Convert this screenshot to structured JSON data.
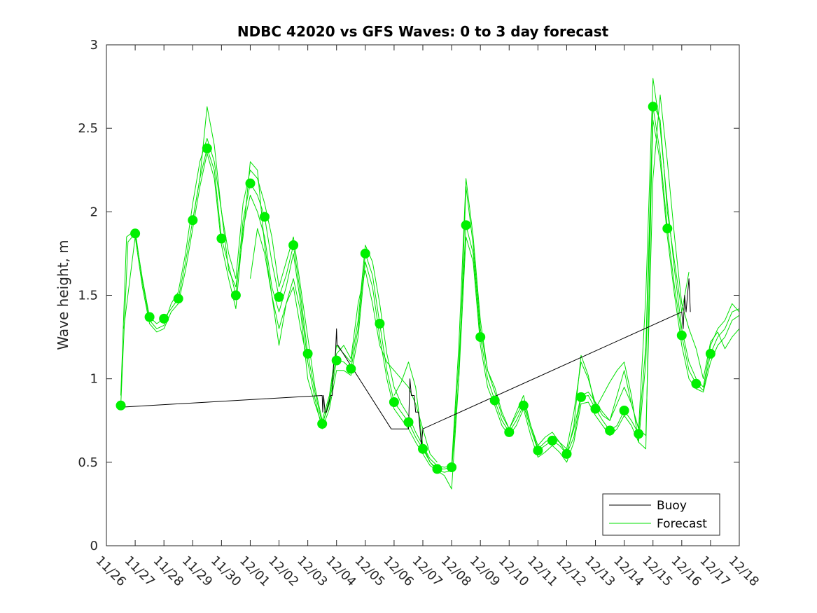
{
  "chart_data": {
    "type": "line",
    "title": "NDBC 42020 vs GFS Waves: 0 to 3 day forecast",
    "xlabel": "",
    "ylabel": "Wave height, m",
    "x_unit": "days since 11/26",
    "xlim": [
      0,
      22
    ],
    "ylim": [
      0,
      3
    ],
    "yticks": [
      0,
      0.5,
      1,
      1.5,
      2,
      2.5,
      3
    ],
    "ytick_labels": [
      "0",
      "0.5",
      "1",
      "1.5",
      "2",
      "2.5",
      "3"
    ],
    "xticks": [
      0,
      1,
      2,
      3,
      4,
      5,
      6,
      7,
      8,
      9,
      10,
      11,
      12,
      13,
      14,
      15,
      16,
      17,
      18,
      19,
      20,
      21,
      22
    ],
    "xtick_labels": [
      "11/26",
      "11/27",
      "11/28",
      "11/29",
      "11/30",
      "12/01",
      "12/02",
      "12/03",
      "12/04",
      "12/05",
      "12/06",
      "12/07",
      "12/08",
      "12/09",
      "12/10",
      "12/11",
      "12/12",
      "12/13",
      "12/14",
      "12/15",
      "12/16",
      "12/17",
      "12/18"
    ],
    "legend": {
      "position": "bottom-right",
      "entries": [
        "Buoy",
        "Forecast"
      ]
    },
    "colors": {
      "buoy": "#000000",
      "forecast": "#00e000",
      "markers": "#00f000"
    },
    "series": [
      {
        "name": "Buoy",
        "x": [
          0.5,
          7.5,
          7.52,
          7.55,
          7.6,
          7.65,
          7.8,
          7.85,
          7.9,
          7.95,
          8.0,
          8.02,
          8.05,
          9.9,
          10.5,
          10.55,
          10.6,
          10.7,
          10.75,
          10.85,
          10.9,
          10.95,
          11.0,
          20.0,
          20.05,
          20.1,
          20.15,
          20.2,
          20.25,
          20.3
        ],
        "y": [
          0.83,
          0.9,
          0.8,
          0.9,
          0.8,
          0.8,
          0.9,
          0.9,
          1.1,
          1.1,
          1.3,
          1.2,
          1.2,
          0.7,
          0.7,
          1.0,
          0.9,
          0.9,
          0.8,
          0.8,
          0.7,
          0.6,
          0.7,
          1.4,
          1.3,
          1.5,
          1.4,
          1.5,
          1.6,
          1.4
        ]
      },
      {
        "name": "Forecast run 1",
        "x": [
          0.5,
          0.75,
          1.0,
          1.25,
          1.5,
          1.75,
          2.0,
          2.25,
          2.5,
          2.75,
          3.0,
          3.25,
          3.5,
          3.75,
          4.0,
          4.25,
          4.5,
          4.75,
          5.0,
          5.25,
          5.5,
          5.75,
          6.0,
          6.25,
          6.5,
          6.75,
          7.0,
          7.25,
          7.5,
          7.75,
          8.0,
          8.25,
          8.5,
          8.75,
          9.0,
          9.25,
          9.5,
          9.75,
          10.0,
          10.25,
          10.5,
          10.75,
          11.0,
          11.25,
          11.5,
          11.75,
          12.0,
          12.25,
          12.5,
          12.75,
          13.0,
          13.25,
          13.5,
          13.75,
          14.0,
          14.25,
          14.5,
          14.75,
          15.0,
          15.25,
          15.5,
          15.75,
          16.0,
          16.25,
          16.5,
          16.75,
          17.0,
          17.25,
          17.5,
          17.75,
          18.0,
          18.25,
          18.5,
          18.75,
          19.0,
          19.25,
          19.5,
          19.75,
          20.0,
          20.25,
          20.5,
          20.75,
          21.0,
          21.25,
          21.5,
          21.75,
          22.0
        ],
        "y": [
          0.84,
          1.82,
          1.87,
          1.6,
          1.37,
          1.33,
          1.36,
          1.42,
          1.48,
          1.7,
          1.95,
          2.2,
          2.38,
          2.25,
          1.84,
          1.68,
          1.5,
          1.95,
          2.17,
          2.1,
          1.97,
          1.7,
          1.49,
          1.62,
          1.8,
          1.5,
          1.15,
          0.92,
          0.73,
          0.85,
          1.11,
          1.1,
          1.06,
          1.3,
          1.75,
          1.62,
          1.33,
          1.05,
          0.86,
          0.8,
          0.74,
          0.65,
          0.58,
          0.5,
          0.46,
          0.46,
          0.47,
          1.1,
          1.92,
          1.75,
          1.25,
          1.0,
          0.87,
          0.75,
          0.68,
          0.75,
          0.84,
          0.7,
          0.57,
          0.6,
          0.63,
          0.6,
          0.55,
          0.65,
          0.89,
          0.9,
          0.82,
          0.75,
          0.69,
          0.72,
          0.81,
          0.75,
          0.67,
          1.2,
          2.63,
          2.35,
          1.9,
          1.55,
          1.26,
          1.05,
          0.97,
          0.93,
          1.15,
          1.25,
          1.3,
          1.4,
          1.42
        ]
      },
      {
        "name": "Forecast run 2",
        "x": [
          0.5,
          0.7,
          1.0,
          1.25,
          1.5,
          1.75,
          2.0,
          2.25,
          2.5,
          2.75,
          3.0,
          3.25,
          3.5,
          3.75,
          4.0,
          4.25,
          4.5,
          4.75,
          5.0,
          5.25,
          5.5,
          5.75,
          6.0,
          6.25,
          6.5,
          6.75,
          7.0,
          7.25,
          7.5,
          7.75,
          8.0,
          8.25,
          8.5,
          8.75,
          9.0,
          9.25,
          9.5,
          9.75,
          10.0,
          10.25,
          10.5,
          10.75,
          11.0,
          11.25,
          11.5,
          11.75,
          12.0,
          12.25,
          12.5,
          12.75,
          13.0,
          13.25,
          13.5,
          13.75,
          14.0,
          14.25,
          14.5,
          14.75,
          15.0,
          15.25,
          15.5,
          15.75,
          16.0,
          16.25,
          16.5,
          16.75,
          17.0,
          17.25,
          17.5,
          17.75,
          18.0,
          18.25,
          18.5,
          18.75,
          19.0,
          19.25,
          19.5,
          19.75,
          20.0,
          20.25,
          20.5,
          20.75,
          21.0,
          21.25,
          21.5,
          21.75,
          22.0
        ],
        "y": [
          0.9,
          1.85,
          1.89,
          1.58,
          1.35,
          1.3,
          1.32,
          1.45,
          1.52,
          1.75,
          2.05,
          2.3,
          2.44,
          2.3,
          2.0,
          1.75,
          1.6,
          2.05,
          2.25,
          2.2,
          2.05,
          1.85,
          1.55,
          1.7,
          1.85,
          1.55,
          1.25,
          0.95,
          0.75,
          0.9,
          1.2,
          1.15,
          1.1,
          1.35,
          1.8,
          1.7,
          1.45,
          1.15,
          0.95,
          0.85,
          0.78,
          0.68,
          0.6,
          0.52,
          0.48,
          0.47,
          0.48,
          1.2,
          2.2,
          1.85,
          1.35,
          1.05,
          0.92,
          0.78,
          0.7,
          0.8,
          0.9,
          0.72,
          0.58,
          0.62,
          0.65,
          0.62,
          0.58,
          0.8,
          1.1,
          1.0,
          0.85,
          0.78,
          0.75,
          0.9,
          1.05,
          0.85,
          0.7,
          1.5,
          2.8,
          2.5,
          2.05,
          1.65,
          1.3,
          1.1,
          1.0,
          0.95,
          1.2,
          1.3,
          1.35,
          1.45,
          1.4
        ]
      },
      {
        "name": "Forecast run 3",
        "x": [
          0.6,
          1.0,
          1.25,
          1.5,
          1.75,
          2.0,
          2.25,
          2.5,
          2.75,
          3.0,
          3.25,
          3.5,
          3.75,
          4.0,
          4.25,
          4.5,
          4.75,
          5.0,
          5.25,
          5.5,
          5.75,
          6.0,
          6.25,
          6.5,
          6.75,
          7.0,
          7.25,
          7.5,
          7.75,
          8.0,
          8.25,
          8.5,
          8.75,
          9.0,
          9.25,
          9.5,
          9.75,
          10.0,
          10.25,
          10.5,
          10.75,
          11.0,
          11.25,
          11.5,
          11.75,
          12.0,
          12.25,
          12.5,
          12.75,
          13.0,
          13.25,
          13.5,
          13.75,
          14.0,
          14.25,
          14.5,
          14.75,
          15.0,
          15.25,
          15.5,
          15.75,
          16.0,
          16.25,
          16.5,
          16.75,
          17.0,
          17.25,
          17.5,
          17.75,
          18.0,
          18.25,
          18.5,
          18.75,
          19.0,
          19.25,
          19.5,
          19.75,
          20.0,
          20.25,
          20.5,
          20.75,
          21.0,
          21.25,
          21.5,
          21.75,
          22.0
        ],
        "y": [
          1.3,
          1.85,
          1.55,
          1.33,
          1.28,
          1.3,
          1.4,
          1.45,
          1.65,
          1.9,
          2.15,
          2.35,
          2.2,
          1.8,
          1.6,
          1.42,
          1.9,
          2.1,
          2.0,
          1.85,
          1.55,
          1.4,
          1.55,
          1.75,
          1.45,
          1.1,
          0.88,
          0.7,
          0.82,
          1.05,
          1.05,
          1.02,
          1.25,
          1.7,
          1.55,
          1.25,
          1.0,
          0.82,
          0.76,
          0.7,
          0.62,
          0.55,
          0.48,
          0.45,
          0.44,
          0.45,
          1.0,
          1.85,
          1.7,
          1.2,
          0.95,
          0.84,
          0.72,
          0.66,
          0.72,
          0.82,
          0.66,
          0.53,
          0.56,
          0.6,
          0.56,
          0.5,
          0.62,
          0.85,
          0.86,
          0.78,
          0.72,
          0.66,
          0.7,
          0.78,
          0.72,
          0.62,
          1.1,
          2.55,
          2.3,
          1.85,
          1.5,
          1.2,
          1.0,
          0.94,
          0.92,
          1.1,
          1.2,
          1.25,
          1.35,
          1.38
        ]
      },
      {
        "name": "Forecast run 4",
        "x": [
          3.0,
          3.25,
          3.5,
          3.75,
          4.0,
          4.25,
          4.5,
          4.75,
          5.0,
          5.25,
          5.5,
          5.75,
          6.0,
          6.25,
          6.5,
          6.75,
          7.0
        ],
        "y": [
          1.95,
          2.2,
          2.63,
          2.4,
          2.0,
          1.65,
          1.55,
          1.85,
          2.3,
          2.25,
          1.8,
          1.5,
          1.3,
          1.45,
          1.55,
          1.3,
          1.1
        ]
      },
      {
        "name": "Forecast run 5",
        "x": [
          5.0,
          5.25,
          5.5,
          5.75,
          6.0,
          6.25,
          6.5,
          6.75,
          7.0,
          7.25,
          7.5,
          7.75,
          8.0,
          8.25,
          8.5,
          8.75,
          9.0,
          9.25,
          9.5,
          9.75,
          10.0,
          10.25,
          10.5,
          10.75,
          11.0,
          11.25,
          11.5
        ],
        "y": [
          1.6,
          1.9,
          1.75,
          1.5,
          1.2,
          1.45,
          1.6,
          1.4,
          1.0,
          0.85,
          0.72,
          0.88,
          1.15,
          1.2,
          1.12,
          1.45,
          1.65,
          1.45,
          1.2,
          1.1,
          1.05,
          1.0,
          0.95,
          0.85,
          0.7,
          0.55,
          0.5
        ]
      },
      {
        "name": "Forecast run 6",
        "x": [
          10.0,
          10.25,
          10.5,
          10.75,
          11.0,
          11.25,
          11.5,
          11.75,
          12.0,
          12.25,
          12.5,
          12.75,
          13.0,
          13.25,
          13.5,
          13.75,
          14.0,
          14.25,
          14.5,
          14.75,
          15.0,
          15.25,
          15.5,
          15.75,
          16.0,
          16.25,
          16.5,
          16.75,
          17.0,
          17.25,
          17.5,
          17.75,
          18.0,
          18.25,
          18.5,
          18.75,
          19.0,
          19.25,
          19.5,
          19.75,
          20.0,
          20.25
        ],
        "y": [
          0.9,
          0.98,
          1.1,
          0.95,
          0.6,
          0.5,
          0.45,
          0.42,
          0.34,
          1.0,
          2.15,
          1.8,
          1.3,
          1.05,
          0.95,
          0.8,
          0.7,
          0.78,
          0.86,
          0.72,
          0.6,
          0.65,
          0.68,
          0.62,
          0.55,
          0.72,
          1.14,
          1.02,
          0.82,
          0.9,
          0.98,
          1.05,
          1.1,
          0.9,
          0.62,
          0.58,
          2.65,
          2.55,
          2.0,
          1.7,
          1.4,
          1.64
        ]
      },
      {
        "name": "Forecast run 7",
        "x": [
          16.0,
          16.25,
          16.5,
          16.75,
          17.0,
          17.25,
          17.5,
          17.75,
          18.0,
          18.25,
          18.5,
          18.75,
          19.0,
          19.25,
          19.5,
          19.75,
          20.0,
          20.25,
          20.5,
          20.75,
          21.0,
          21.25,
          21.5,
          21.75,
          22.0
        ],
        "y": [
          0.56,
          0.7,
          0.9,
          0.92,
          0.86,
          0.8,
          0.75,
          0.85,
          0.95,
          0.85,
          0.7,
          0.66,
          2.2,
          2.7,
          2.3,
          1.85,
          1.45,
          1.3,
          1.18,
          1.0,
          1.22,
          1.28,
          1.18,
          1.25,
          1.3
        ]
      }
    ],
    "markers": {
      "x": [
        0.5,
        1.0,
        1.5,
        2.0,
        2.5,
        3.0,
        3.5,
        4.0,
        4.5,
        5.0,
        5.5,
        6.0,
        6.5,
        7.0,
        7.5,
        8.0,
        8.5,
        9.0,
        9.5,
        10.0,
        10.5,
        11.0,
        11.5,
        12.0,
        12.5,
        13.0,
        13.5,
        14.0,
        14.5,
        15.0,
        15.5,
        16.0,
        16.5,
        17.0,
        17.5,
        18.0,
        18.5,
        19.0,
        19.5,
        20.0,
        20.5,
        21.0
      ],
      "y": [
        0.84,
        1.87,
        1.37,
        1.36,
        1.48,
        1.95,
        2.38,
        1.84,
        1.5,
        2.17,
        1.97,
        1.49,
        1.8,
        1.15,
        0.73,
        1.11,
        1.06,
        1.75,
        1.33,
        0.86,
        0.74,
        0.58,
        0.46,
        0.47,
        1.92,
        1.25,
        0.87,
        0.68,
        0.84,
        0.57,
        0.63,
        0.55,
        0.89,
        0.82,
        0.69,
        0.81,
        0.67,
        2.63,
        1.9,
        1.26,
        0.97,
        1.15
      ]
    }
  }
}
